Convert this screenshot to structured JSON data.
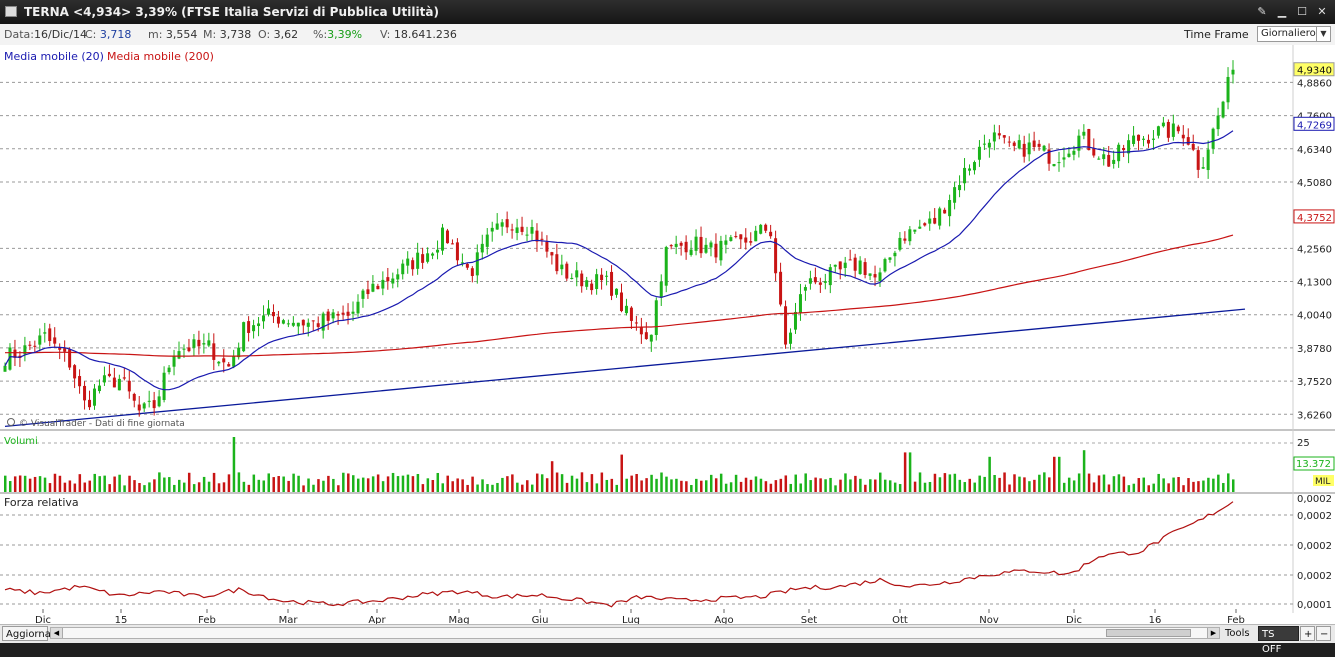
{
  "window": {
    "title": "TERNA <4,934> 3,39%  (FTSE Italia Servizi di Pubblica Utilità)",
    "buttons": [
      "wrench",
      "minimize",
      "maximize",
      "close"
    ]
  },
  "info": {
    "data_label": "Data:",
    "data_value": "16/Dic/14",
    "close_label": "C:",
    "close_value": "3,718",
    "min_label": "m:",
    "min_value": "3,554",
    "max_label": "M:",
    "max_value": "3,738",
    "open_label": "O:",
    "open_value": "3,62",
    "pct_label": "%:",
    "pct_value": "3,39%",
    "vol_label": "V:",
    "vol_value": "18.641.236",
    "timeframe_label": "Time Frame",
    "timeframe_value": "Giornaliero"
  },
  "legend": {
    "ma20": "Media mobile (20)",
    "ma200": "Media mobile (200)",
    "watermark": "© VisualTrader - Dati di fine giornata",
    "volume": "Volumi",
    "rs": "Forza relativa"
  },
  "colors": {
    "up": "#1bb31b",
    "down": "#c81414",
    "ma20": "#1a1ab0",
    "ma200": "#c81414",
    "trendline": "#0a1a9a",
    "rs": "#b01010",
    "last_price_box": "#ffff66",
    "ma20_box": "#ffffff"
  },
  "price_axis": {
    "labels": [
      "4,9340",
      "4,8860",
      "4,7600",
      "4,7269",
      "4,6340",
      "4,5080",
      "4,3752",
      "4,2560",
      "4,1300",
      "4,0040",
      "3,8780",
      "3,7520",
      "3,6260"
    ],
    "last_price": "4,9340",
    "ma20_value": "4,7269",
    "ma200_value": "4,3752"
  },
  "volume_axis": {
    "top": "25",
    "last": "13.372",
    "unit": "MIL"
  },
  "rs_axis": [
    "0,0002",
    "0,0002",
    "0,0002",
    "0,0002",
    "0,0001"
  ],
  "x_axis": [
    "Dic",
    "15",
    "Feb",
    "Mar",
    "Apr",
    "Mag",
    "Giu",
    "Lug",
    "Ago",
    "Set",
    "Ott",
    "Nov",
    "Dic",
    "16",
    "Feb"
  ],
  "chart_data": {
    "type": "candlestick",
    "series": [
      {
        "name": "Media mobile (20)"
      },
      {
        "name": "Media mobile (200)"
      },
      {
        "name": "Volumi"
      },
      {
        "name": "Forza relativa"
      }
    ],
    "y_range": [
      3.57,
      4.99
    ],
    "last": {
      "close": 4.934,
      "ma20": 4.7269,
      "ma200": 4.3752
    },
    "close_anchors": [
      [
        0,
        3.84
      ],
      [
        20,
        3.86
      ],
      [
        45,
        3.92
      ],
      [
        70,
        3.82
      ],
      [
        85,
        3.66
      ],
      [
        100,
        3.74
      ],
      [
        120,
        3.76
      ],
      [
        140,
        3.63
      ],
      [
        155,
        3.66
      ],
      [
        175,
        3.88
      ],
      [
        210,
        3.88
      ],
      [
        228,
        3.8
      ],
      [
        245,
        3.96
      ],
      [
        270,
        4.0
      ],
      [
        310,
        3.97
      ],
      [
        350,
        4.0
      ],
      [
        370,
        4.1
      ],
      [
        400,
        4.17
      ],
      [
        430,
        4.25
      ],
      [
        445,
        4.31
      ],
      [
        470,
        4.16
      ],
      [
        490,
        4.3
      ],
      [
        510,
        4.36
      ],
      [
        530,
        4.34
      ],
      [
        560,
        4.17
      ],
      [
        580,
        4.14
      ],
      [
        610,
        4.12
      ],
      [
        630,
        3.98
      ],
      [
        650,
        3.92
      ],
      [
        665,
        4.24
      ],
      [
        690,
        4.28
      ],
      [
        710,
        4.25
      ],
      [
        740,
        4.27
      ],
      [
        770,
        4.34
      ],
      [
        785,
        3.88
      ],
      [
        805,
        4.12
      ],
      [
        830,
        4.15
      ],
      [
        860,
        4.2
      ],
      [
        878,
        4.13
      ],
      [
        900,
        4.3
      ],
      [
        935,
        4.36
      ],
      [
        960,
        4.52
      ],
      [
        990,
        4.69
      ],
      [
        1010,
        4.63
      ],
      [
        1030,
        4.64
      ],
      [
        1055,
        4.6
      ],
      [
        1080,
        4.68
      ],
      [
        1110,
        4.58
      ],
      [
        1130,
        4.66
      ],
      [
        1160,
        4.7
      ],
      [
        1185,
        4.7
      ],
      [
        1200,
        4.56
      ],
      [
        1215,
        4.72
      ],
      [
        1233,
        4.93
      ]
    ],
    "volume_spikes": [
      [
        235,
        25
      ],
      [
        907,
        18
      ],
      [
        988,
        16
      ],
      [
        1082,
        19
      ],
      [
        1056,
        16
      ],
      [
        620,
        17
      ],
      [
        553,
        14
      ]
    ],
    "rs_anchors": [
      [
        0,
        0.000112
      ],
      [
        40,
        0.000108
      ],
      [
        80,
        0.000115
      ],
      [
        120,
        0.000105
      ],
      [
        160,
        0.00011
      ],
      [
        200,
        0.000104
      ],
      [
        240,
        0.000112
      ],
      [
        280,
        0.0001
      ],
      [
        330,
        9.6e-05
      ],
      [
        380,
        0.0001
      ],
      [
        420,
        0.000106
      ],
      [
        460,
        0.00011
      ],
      [
        500,
        0.000104
      ],
      [
        540,
        0.000106
      ],
      [
        580,
        0.0001
      ],
      [
        610,
        9.5e-05
      ],
      [
        640,
        0.000104
      ],
      [
        680,
        0.0001
      ],
      [
        720,
        0.000102
      ],
      [
        760,
        0.000104
      ],
      [
        800,
        0.000113
      ],
      [
        840,
        0.000115
      ],
      [
        880,
        0.000122
      ],
      [
        910,
        0.000115
      ],
      [
        950,
        0.00012
      ],
      [
        990,
        0.000128
      ],
      [
        1030,
        0.000132
      ],
      [
        1070,
        0.000128
      ],
      [
        1100,
        0.000148
      ],
      [
        1140,
        0.000152
      ],
      [
        1170,
        0.00017
      ],
      [
        1200,
        0.000185
      ],
      [
        1233,
        0.000205
      ]
    ]
  },
  "bottom": {
    "update": "Aggiorna",
    "tools": "Tools",
    "ts": "TS OFF",
    "plus": "+",
    "minus": "−"
  }
}
